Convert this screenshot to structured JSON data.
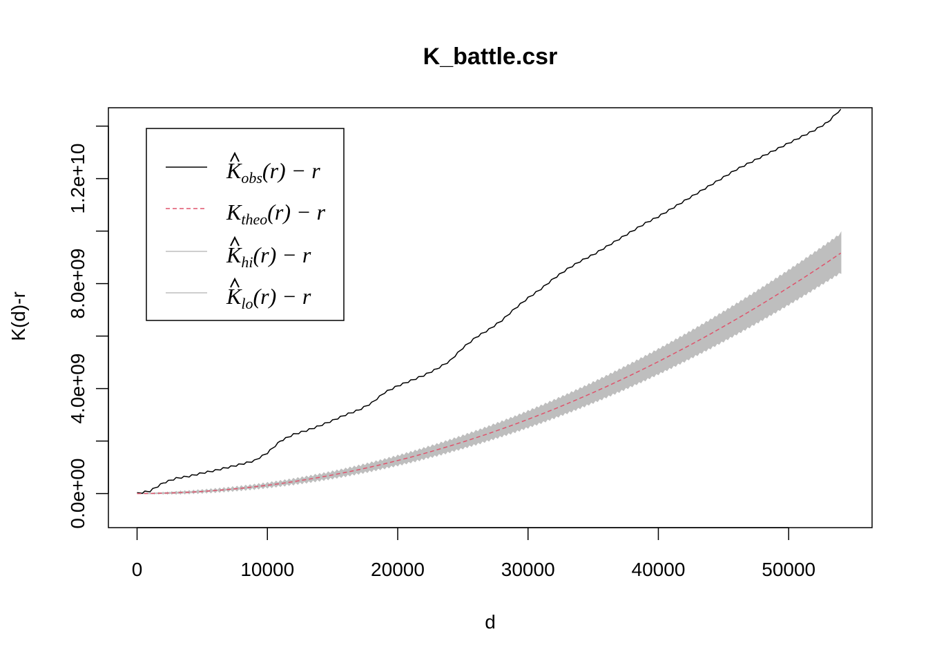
{
  "chart_data": {
    "type": "line",
    "title": "K_battle.csr",
    "xlabel": "d",
    "ylabel": "K(d)-r",
    "xlim": [
      -2200,
      56400
    ],
    "ylim": [
      -1300000000.0,
      14700000000.0
    ],
    "x_ticks": [
      0,
      10000,
      20000,
      30000,
      40000,
      50000
    ],
    "x_tick_labels": [
      "0",
      "10000",
      "20000",
      "30000",
      "40000",
      "50000"
    ],
    "y_ticks": [
      0,
      2000000000.0,
      4000000000.0,
      6000000000.0,
      8000000000.0,
      10000000000.0,
      12000000000.0,
      14000000000.0
    ],
    "y_tick_labels": [
      {
        "value": 0,
        "label": "0.0e+00"
      },
      {
        "value": 4000000000.0,
        "label": "4.0e+09"
      },
      {
        "value": 8000000000.0,
        "label": "8.0e+09"
      },
      {
        "value": 12000000000.0,
        "label": "1.2e+10"
      }
    ],
    "grid": false,
    "legend_position": "top-left",
    "legend": [
      {
        "base": "K",
        "hat": true,
        "sub": "obs",
        "suffix": "(r) − r",
        "style": "solid",
        "color": "#000000"
      },
      {
        "base": "K",
        "hat": false,
        "sub": "theo",
        "suffix": "(r) − r",
        "style": "dashed",
        "color": "#DF536B"
      },
      {
        "base": "K",
        "hat": true,
        "sub": "hi",
        "suffix": "(r) − r",
        "style": "solid",
        "color": "#BEBEBE"
      },
      {
        "base": "K",
        "hat": true,
        "sub": "lo",
        "suffix": "(r) − r",
        "style": "solid",
        "color": "#BEBEBE"
      }
    ],
    "x": [
      0,
      1000,
      2000,
      3000,
      4000,
      5000,
      6000,
      7000,
      8000,
      9000,
      10000,
      11000,
      12000,
      13000,
      14000,
      15000,
      16000,
      17000,
      18000,
      19000,
      20000,
      21000,
      22000,
      23000,
      24000,
      25000,
      26000,
      27000,
      28000,
      29000,
      30000,
      31000,
      32000,
      33000,
      34000,
      35000,
      36000,
      37000,
      38000,
      39000,
      40000,
      41000,
      42000,
      43000,
      44000,
      45000,
      46000,
      47000,
      48000,
      49000,
      50000,
      51000,
      52000,
      53000,
      54000
    ],
    "series": [
      {
        "key": "obs",
        "color": "#000000",
        "style": "solid",
        "values": [
          0,
          100000000.0,
          400000000.0,
          580000000.0,
          660000000.0,
          780000000.0,
          880000000.0,
          1000000000.0,
          1120000000.0,
          1250000000.0,
          1550000000.0,
          2000000000.0,
          2250000000.0,
          2400000000.0,
          2580000000.0,
          2780000000.0,
          3000000000.0,
          3180000000.0,
          3450000000.0,
          3850000000.0,
          4100000000.0,
          4300000000.0,
          4500000000.0,
          4750000000.0,
          5050000000.0,
          5550000000.0,
          5950000000.0,
          6250000000.0,
          6600000000.0,
          7050000000.0,
          7450000000.0,
          7800000000.0,
          8200000000.0,
          8550000000.0,
          8850000000.0,
          9100000000.0,
          9400000000.0,
          9700000000.0,
          10000000000.0,
          10300000000.0,
          10550000000.0,
          10850000000.0,
          11150000000.0,
          11450000000.0,
          11750000000.0,
          12050000000.0,
          12350000000.0,
          12600000000.0,
          12850000000.0,
          13100000000.0,
          13350000000.0,
          13600000000.0,
          13850000000.0,
          14150000000.0,
          14650000000.0
        ]
      },
      {
        "key": "theo",
        "color": "#DF536B",
        "style": "dashed",
        "values": [
          0,
          3000000.0,
          13000000.0,
          28000000.0,
          50000000.0,
          79000000.0,
          113000000.0,
          154000000.0,
          201000000.0,
          254000000.0,
          314000000.0,
          380000000.0,
          452000000.0,
          531000000.0,
          616000000.0,
          707000000.0,
          804000000.0,
          908000000.0,
          1018000000.0,
          1134000000.0,
          1257000000.0,
          1385000000.0,
          1521000000.0,
          1662000000.0,
          1810000000.0,
          1963000000.0,
          2124000000.0,
          2290000000.0,
          2463000000.0,
          2642000000.0,
          2827000000.0,
          3019000000.0,
          3217000000.0,
          3421000000.0,
          3632000000.0,
          3848000000.0,
          4072000000.0,
          4301000000.0,
          4536000000.0,
          4778000000.0,
          5027000000.0,
          5281000000.0,
          5542000000.0,
          5809000000.0,
          6082000000.0,
          6362000000.0,
          6648000000.0,
          6940000000.0,
          7238000000.0,
          7543000000.0,
          7854000000.0,
          8171000000.0,
          8495000000.0,
          8825000000.0,
          9161000000.0
        ]
      }
    ],
    "envelope": {
      "color": "#BEBEBE",
      "hi_values": [
        0,
        6000000.0,
        20000000.0,
        40000000.0,
        68000000.0,
        103000000.0,
        144000000.0,
        192000000.0,
        247000000.0,
        308000000.0,
        375000000.0,
        449000000.0,
        530000000.0,
        617000000.0,
        712000000.0,
        812000000.0,
        920000000.0,
        1033000000.0,
        1154000000.0,
        1282000000.0,
        1415000000.0,
        1555000000.0,
        1703000000.0,
        1856000000.0,
        2017000000.0,
        2183000000.0,
        2357000000.0,
        2537000000.0,
        2724000000.0,
        2917000000.0,
        3118000000.0,
        3324000000.0,
        3538000000.0,
        3757000000.0,
        3984000000.0,
        4216000000.0,
        4456000000.0,
        4702000000.0,
        4954000000.0,
        5213000000.0,
        5479000000.0,
        5751000000.0,
        6029000000.0,
        6314000000.0,
        6606000000.0,
        6904000000.0,
        7208000000.0,
        7519000000.0,
        7836000000.0,
        8160000000.0,
        8490000000.0,
        8827000000.0,
        9170000000.0,
        9520000000.0,
        9880000000.0
      ],
      "lo_values": [
        0,
        1000000.0,
        7000000.0,
        18000000.0,
        34000000.0,
        56000000.0,
        84000000.0,
        118000000.0,
        157000000.0,
        203000000.0,
        254000000.0,
        312000000.0,
        375000000.0,
        445000000.0,
        521000000.0,
        602000000.0,
        689000000.0,
        783000000.0,
        882000000.0,
        988000000.0,
        1099000000.0,
        1216000000.0,
        1340000000.0,
        1469000000.0,
        1605000000.0,
        1745000000.0,
        1893000000.0,
        2045000000.0,
        2204000000.0,
        2368000000.0,
        2538000000.0,
        2715000000.0,
        2898000000.0,
        3086000000.0,
        3282000000.0,
        3481000000.0,
        3689000000.0,
        3901000000.0,
        4119000000.0,
        4343000000.0,
        4575000000.0,
        4811000000.0,
        5055000000.0,
        5305000000.0,
        5559000000.0,
        5821000000.0,
        6089000000.0,
        6361000000.0,
        6641000000.0,
        6926000000.0,
        7218000000.0,
        7516000000.0,
        7821000000.0,
        8130000000.0,
        8440000000.0
      ]
    }
  }
}
